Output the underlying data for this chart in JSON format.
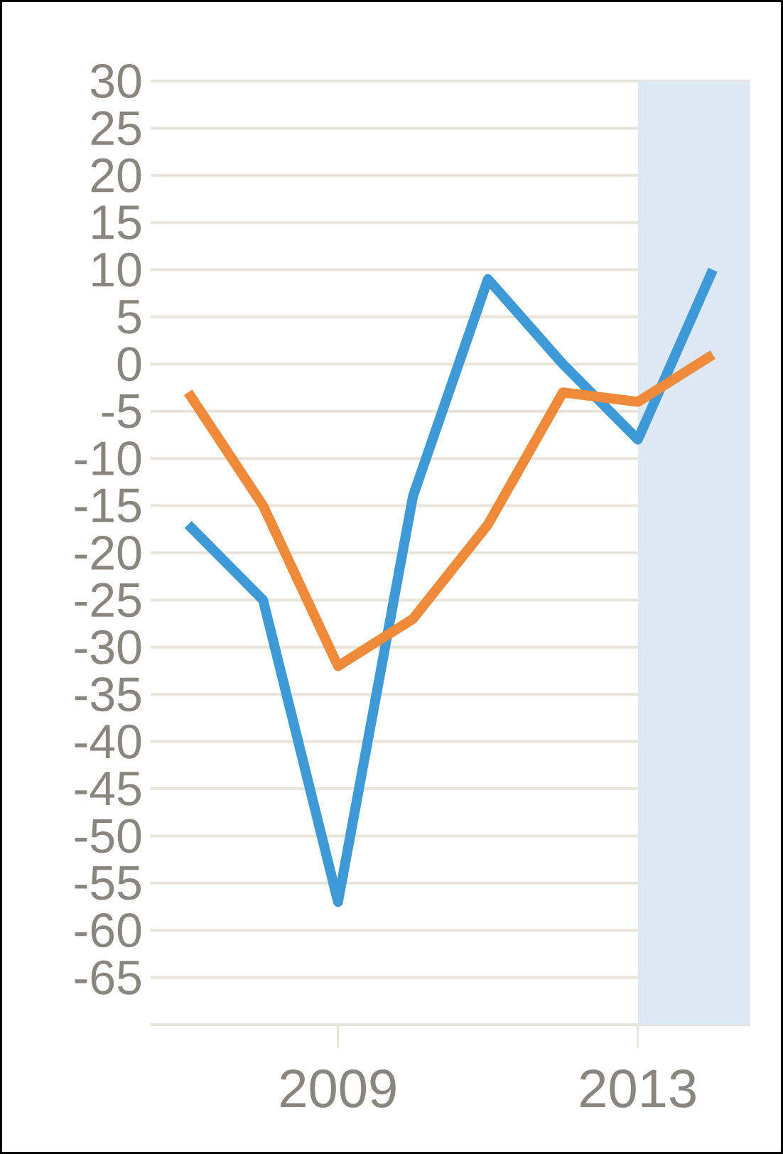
{
  "chart_data": {
    "type": "line",
    "x": [
      2007,
      2008,
      2009,
      2010,
      2011,
      2012,
      2013,
      2014
    ],
    "series": [
      {
        "color": "#3d9ad6",
        "values": [
          -17,
          -25,
          -57,
          -14,
          9,
          0,
          -8,
          10
        ]
      },
      {
        "color": "#ee8a3a",
        "values": [
          -3,
          -15,
          -32,
          -27,
          -17,
          -3,
          -4,
          1
        ]
      }
    ],
    "xlim": [
      2006.5,
      2014.5
    ],
    "xticks": [
      2009,
      2013
    ],
    "ylim": [
      -70,
      30
    ],
    "yticks": [
      -65,
      -60,
      -55,
      -50,
      -45,
      -40,
      -35,
      -30,
      -25,
      -20,
      -15,
      -10,
      -5,
      0,
      5,
      10,
      15,
      20,
      25,
      30
    ],
    "grid": "y",
    "bands": [
      {
        "axis": "x",
        "from": 2013,
        "to": 2014.5,
        "color": "#dde8f4"
      }
    ]
  }
}
